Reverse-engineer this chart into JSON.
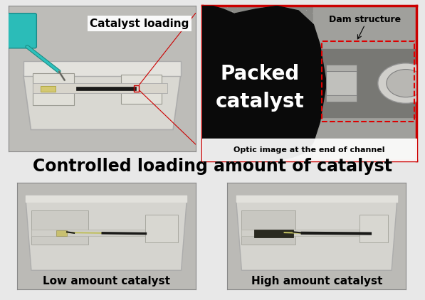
{
  "title_top_left": "Catalyst loading",
  "title_top_right_main": "Packed\ncatalyst",
  "title_top_right_sub": "Dam structure",
  "title_top_right_bottom": "Optic image at the end of channel",
  "title_middle": "Controlled loading amount of catalyst",
  "title_bottom_left": "Low amount catalyst",
  "title_bottom_right": "High amount catalyst",
  "bg_color": "#e8e8e8",
  "panel_bg_tl": "#c8c8c4",
  "panel_bg_tr": "#909090",
  "panel_bg_bl": "#c0c0bc",
  "panel_bg_br": "#c0c0bc",
  "label_color": "#000000",
  "title_fontsize": 17,
  "sublabel_fontsize": 9,
  "main_label_fontsize": 11,
  "packed_label_fontsize": 20,
  "figure_width": 5.97,
  "figure_height": 4.22,
  "dpi": 100
}
